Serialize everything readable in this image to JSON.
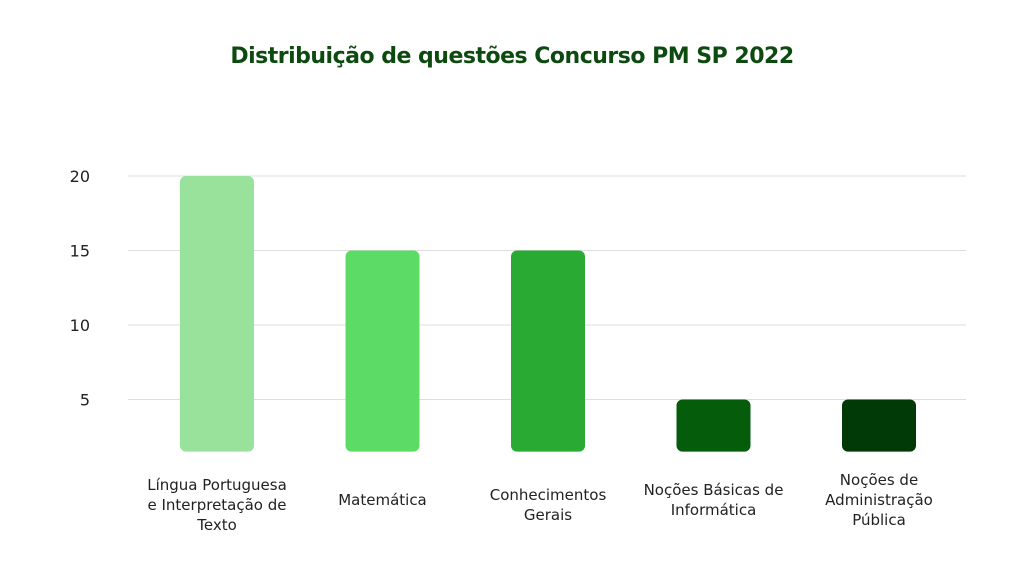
{
  "chart_data": {
    "type": "bar",
    "title": "Distribuição de questões Concurso PM SP 2022",
    "xlabel": "",
    "ylabel": "",
    "categories": [
      "Língua Portuguesa e Interpretação de Texto",
      "Matemática",
      "Conhecimentos Gerais",
      "Noções Básicas de Informática",
      "Noções de Administração Pública"
    ],
    "values": [
      20,
      15,
      15,
      5,
      5
    ],
    "colors": [
      "#98e29c",
      "#5ddb67",
      "#29ab33",
      "#055d0b",
      "#023a07"
    ],
    "yticks": [
      5,
      10,
      15,
      20
    ],
    "ylim": [
      1.5,
      20
    ],
    "grid": true,
    "legend": "none"
  }
}
